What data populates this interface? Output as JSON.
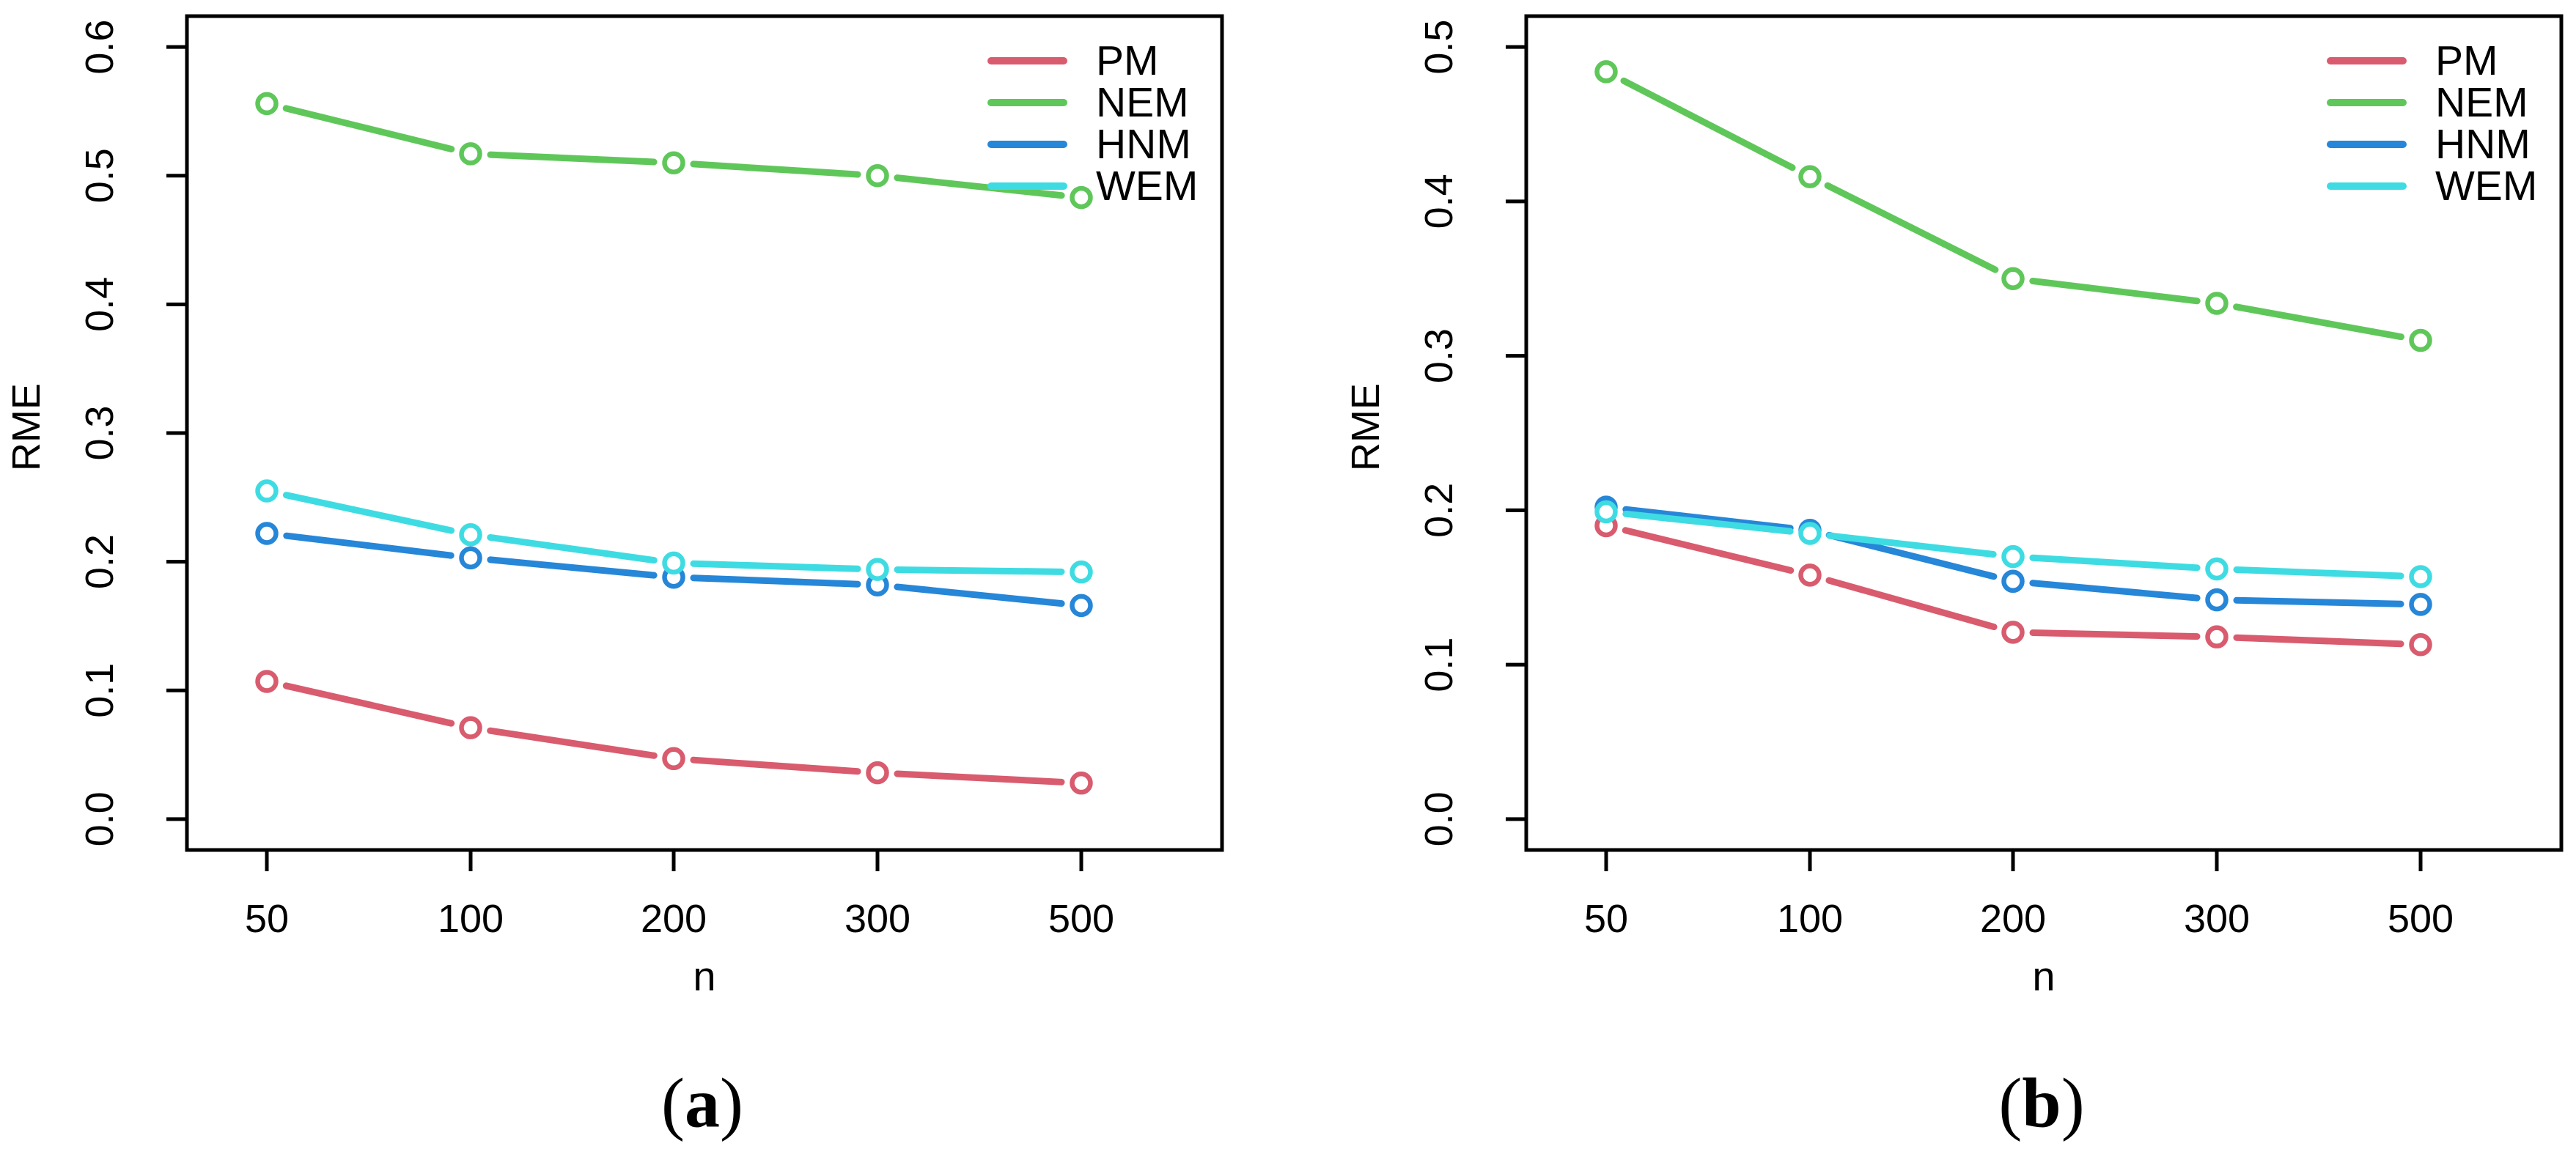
{
  "figure": {
    "background": "#ffffff",
    "text_color": "#000000"
  },
  "chart_data": [
    {
      "type": "line",
      "panel": "a",
      "caption": {
        "open": "(",
        "letter": "a",
        "close": ")"
      },
      "title": "",
      "xlabel": "n",
      "ylabel": "RME",
      "x_categories": [
        50,
        100,
        200,
        300,
        500
      ],
      "x_scale": "equally-spaced-categories",
      "ylim": [
        0,
        0.6
      ],
      "yticks": [
        0.0,
        0.1,
        0.2,
        0.3,
        0.4,
        0.5,
        0.6
      ],
      "grid": false,
      "legend_position": "top-right",
      "marker": "open-circle",
      "series": [
        {
          "name": "PM",
          "color": "#D95B6E",
          "values": [
            0.107,
            0.071,
            0.047,
            0.036,
            0.028
          ]
        },
        {
          "name": "NEM",
          "color": "#5FC75A",
          "values": [
            0.556,
            0.517,
            0.51,
            0.5,
            0.483
          ]
        },
        {
          "name": "HNM",
          "color": "#2686D8",
          "values": [
            0.222,
            0.203,
            0.188,
            0.182,
            0.166
          ]
        },
        {
          "name": "WEM",
          "color": "#3EDCE2",
          "values": [
            0.255,
            0.221,
            0.199,
            0.194,
            0.192
          ]
        }
      ]
    },
    {
      "type": "line",
      "panel": "b",
      "caption": {
        "open": "(",
        "letter": "b",
        "close": ")"
      },
      "title": "",
      "xlabel": "n",
      "ylabel": "RME",
      "x_categories": [
        50,
        100,
        200,
        300,
        500
      ],
      "x_scale": "equally-spaced-categories",
      "ylim": [
        0,
        0.5
      ],
      "yticks": [
        0.0,
        0.1,
        0.2,
        0.3,
        0.4,
        0.5
      ],
      "grid": false,
      "legend_position": "top-right",
      "marker": "open-circle",
      "series": [
        {
          "name": "PM",
          "color": "#D95B6E",
          "values": [
            0.19,
            0.158,
            0.121,
            0.118,
            0.113
          ]
        },
        {
          "name": "NEM",
          "color": "#5FC75A",
          "values": [
            0.484,
            0.416,
            0.35,
            0.334,
            0.31
          ]
        },
        {
          "name": "HNM",
          "color": "#2686D8",
          "values": [
            0.202,
            0.187,
            0.154,
            0.142,
            0.139
          ]
        },
        {
          "name": "WEM",
          "color": "#3EDCE2",
          "values": [
            0.199,
            0.185,
            0.17,
            0.162,
            0.157
          ]
        }
      ]
    }
  ]
}
